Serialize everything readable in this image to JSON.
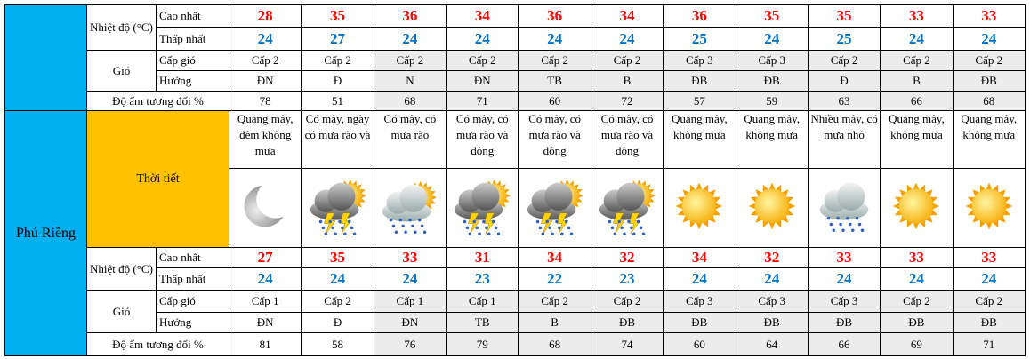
{
  "labels": {
    "temperature": "Nhiệt độ (°C)",
    "high": "Cao nhất",
    "low": "Thấp nhất",
    "wind": "Gió",
    "wind_level": "Cấp gió",
    "wind_direction": "Hướng",
    "humidity": "Độ ẩm tương đối %",
    "weather": "Thời tiết"
  },
  "sections": [
    {
      "high": [
        28,
        35,
        36,
        34,
        36,
        34,
        36,
        35,
        35,
        33,
        33
      ],
      "low": [
        24,
        27,
        24,
        24,
        24,
        24,
        25,
        24,
        25,
        24,
        24
      ],
      "wind_level": [
        "Cấp 2",
        "Cấp 2",
        "Cấp 2",
        "Cấp 2",
        "Cấp 2",
        "Cấp 2",
        "Cấp 3",
        "Cấp 3",
        "Cấp 2",
        "Cấp 2",
        "Cấp 2"
      ],
      "wind_direction": [
        "ĐN",
        "Đ",
        "N",
        "ĐN",
        "TB",
        "B",
        "ĐB",
        "ĐB",
        "Đ",
        "B",
        "ĐB"
      ],
      "humidity": [
        78,
        51,
        68,
        71,
        60,
        72,
        57,
        59,
        63,
        66,
        68
      ]
    },
    {
      "name": "Phú Riềng",
      "weather": [
        "Quang mây, đêm không mưa",
        "Có mây, ngày có mưa rào và",
        "Có mây, có mưa rào",
        "Có mây, có mưa rào và dông",
        "Có mây, có mưa rào và dông",
        "Có mây, có mưa rào và dông",
        "Quang mây, không mưa",
        "Quang mây, không mưa",
        "Nhiều mây, có mưa nhỏ",
        "Quang mây, không mưa",
        "Quang mây, không mưa"
      ],
      "high": [
        27,
        35,
        33,
        31,
        34,
        32,
        34,
        32,
        33,
        33,
        33
      ],
      "low": [
        24,
        24,
        24,
        23,
        22,
        23,
        24,
        24,
        24,
        24,
        24
      ],
      "wind_level": [
        "Cấp 1",
        "Cấp 2",
        "Cấp 1",
        "Cấp 1",
        "Cấp 2",
        "Cấp 2",
        "Cấp 3",
        "Cấp 3",
        "Cấp 3",
        "Cấp 2",
        "Cấp 2"
      ],
      "wind_direction": [
        "ĐN",
        "Đ",
        "ĐN",
        "TB",
        "B",
        "ĐB",
        "ĐB",
        "ĐB",
        "ĐB",
        "ĐB",
        "ĐB"
      ],
      "humidity": [
        81,
        58,
        76,
        79,
        68,
        74,
        60,
        64,
        66,
        69,
        71
      ]
    }
  ]
}
